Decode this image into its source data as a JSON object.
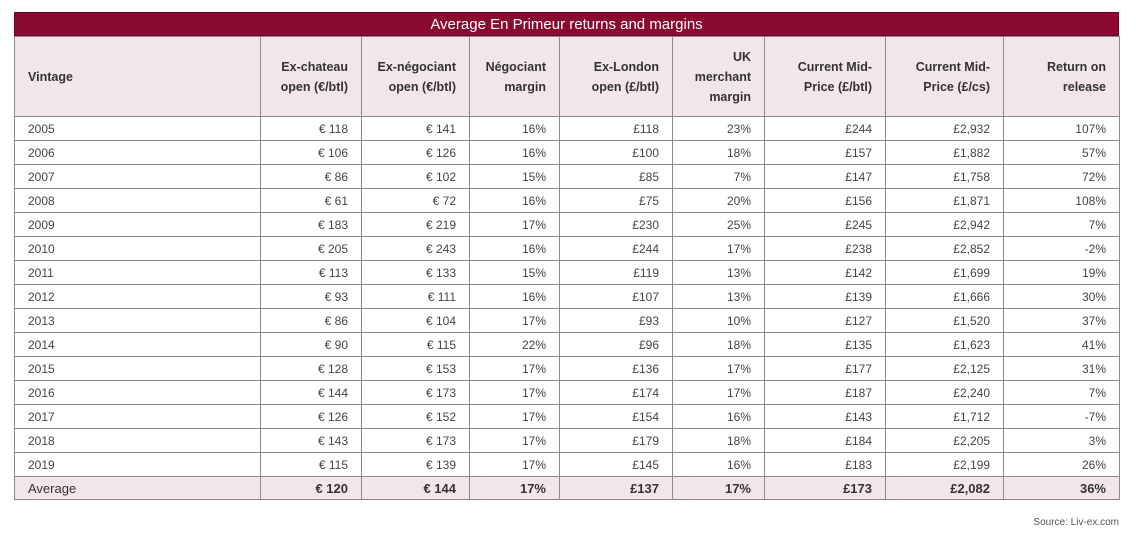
{
  "title": "Average En Primeur returns and margins",
  "columns": [
    "Vintage",
    "Ex-chateau open (€/btl)",
    "Ex-négociant open (€/btl)",
    "Négociant margin",
    "Ex-London open (£/btl)",
    "UK merchant margin",
    "Current Mid-Price (£/btl)",
    "Current Mid-Price (£/cs)",
    "Return on release"
  ],
  "rows": [
    [
      "2005",
      "€ 118",
      "€ 141",
      "16%",
      "£118",
      "23%",
      "£244",
      "£2,932",
      "107%"
    ],
    [
      "2006",
      "€ 106",
      "€ 126",
      "16%",
      "£100",
      "18%",
      "£157",
      "£1,882",
      "57%"
    ],
    [
      "2007",
      "€ 86",
      "€ 102",
      "15%",
      "£85",
      "7%",
      "£147",
      "£1,758",
      "72%"
    ],
    [
      "2008",
      "€ 61",
      "€ 72",
      "16%",
      "£75",
      "20%",
      "£156",
      "£1,871",
      "108%"
    ],
    [
      "2009",
      "€ 183",
      "€ 219",
      "17%",
      "£230",
      "25%",
      "£245",
      "£2,942",
      "7%"
    ],
    [
      "2010",
      "€ 205",
      "€ 243",
      "16%",
      "£244",
      "17%",
      "£238",
      "£2,852",
      "-2%"
    ],
    [
      "2011",
      "€ 113",
      "€ 133",
      "15%",
      "£119",
      "13%",
      "£142",
      "£1,699",
      "19%"
    ],
    [
      "2012",
      "€ 93",
      "€ 111",
      "16%",
      "£107",
      "13%",
      "£139",
      "£1,666",
      "30%"
    ],
    [
      "2013",
      "€ 86",
      "€ 104",
      "17%",
      "£93",
      "10%",
      "£127",
      "£1,520",
      "37%"
    ],
    [
      "2014",
      "€ 90",
      "€ 115",
      "22%",
      "£96",
      "18%",
      "£135",
      "£1,623",
      "41%"
    ],
    [
      "2015",
      "€ 128",
      "€ 153",
      "17%",
      "£136",
      "17%",
      "£177",
      "£2,125",
      "31%"
    ],
    [
      "2016",
      "€ 144",
      "€ 173",
      "17%",
      "£174",
      "17%",
      "£187",
      "£2,240",
      "7%"
    ],
    [
      "2017",
      "€ 126",
      "€ 152",
      "17%",
      "£154",
      "16%",
      "£143",
      "£1,712",
      "-7%"
    ],
    [
      "2018",
      "€ 143",
      "€ 173",
      "17%",
      "£179",
      "18%",
      "£184",
      "£2,205",
      "3%"
    ],
    [
      "2019",
      "€ 115",
      "€ 139",
      "17%",
      "£145",
      "16%",
      "£183",
      "£2,199",
      "26%"
    ]
  ],
  "average": [
    "Average",
    "€ 120",
    "€ 144",
    "17%",
    "£137",
    "17%",
    "£173",
    "£2,082",
    "36%"
  ],
  "source": "Source: Liv-ex.com",
  "colors": {
    "title_bg": "#8b0a32",
    "header_bg": "#f3e6ea"
  }
}
